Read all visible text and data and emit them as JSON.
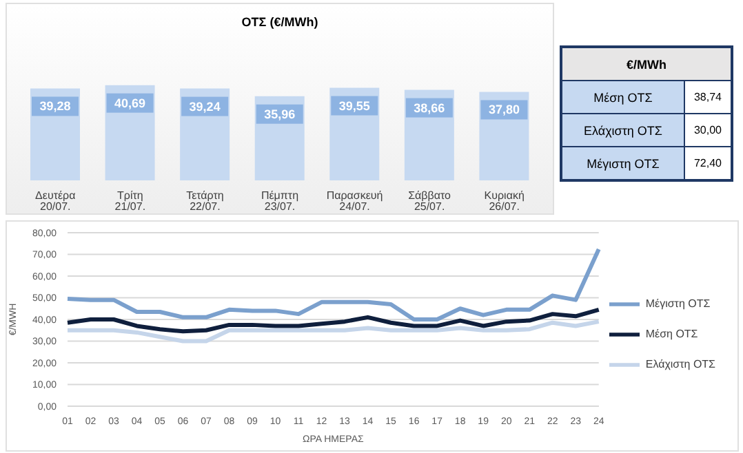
{
  "chart_data": [
    {
      "type": "bar",
      "title": "ΟΤΣ (€/MWh)",
      "categories": [
        "Δευτέρα 20/07.",
        "Τρίτη 21/07.",
        "Τετάρτη 22/07.",
        "Πέμπτη 23/07.",
        "Παρασκευή 24/07.",
        "Σάββατο 25/07.",
        "Κυριακή 26/07."
      ],
      "values": [
        39.28,
        40.69,
        39.24,
        35.96,
        39.55,
        38.66,
        37.8
      ],
      "value_labels": [
        "39,28",
        "40,69",
        "39,24",
        "35,96",
        "39,55",
        "38,66",
        "37,80"
      ],
      "color": "#c6d9f1",
      "tick_labels": "x"
    },
    {
      "type": "other",
      "title": "€/MWh",
      "categories": [
        "Μέση ΟΤΣ",
        "Ελάχιστη ΟΤΣ",
        "Μέγιστη ΟΤΣ"
      ],
      "value_labels": [
        "38,74",
        "30,00",
        "72,40"
      ]
    },
    {
      "type": "line",
      "xlabel": "ΩΡΑ ΗΜΕΡΑΣ",
      "ylabel": "€/MWH",
      "categories": [
        "01",
        "02",
        "03",
        "04",
        "05",
        "06",
        "07",
        "08",
        "09",
        "10",
        "11",
        "12",
        "13",
        "14",
        "15",
        "16",
        "17",
        "18",
        "19",
        "20",
        "21",
        "22",
        "23",
        "24"
      ],
      "series": [
        {
          "name": "Μέγιστη ΟΤΣ",
          "color": "#7ba0cd",
          "values": [
            49.5,
            49,
            49,
            43.5,
            43.5,
            41,
            41,
            44.5,
            44,
            44,
            42.5,
            48,
            48,
            48,
            47,
            40,
            40,
            45,
            42,
            44.5,
            44.5,
            51,
            49,
            72.4
          ]
        },
        {
          "name": "Μέση ΟΤΣ",
          "color": "#0f1f3d",
          "values": [
            38.5,
            40,
            40,
            37,
            35.5,
            34.5,
            35,
            37.5,
            37.5,
            37,
            37,
            38,
            39,
            41,
            38.5,
            37,
            37,
            39.5,
            37,
            39,
            39.5,
            42.5,
            41.5,
            44.5
          ]
        },
        {
          "name": "Ελάχιστη ΟΤΣ",
          "color": "#c5d5ea",
          "values": [
            35,
            35,
            35,
            34,
            32,
            30,
            30,
            35,
            35,
            35,
            35,
            35,
            35,
            36,
            35,
            35,
            35,
            36,
            35,
            35,
            35.5,
            38.5,
            37,
            39
          ]
        }
      ],
      "ylim": [
        0,
        80
      ],
      "yticks": [
        {
          "value": 0,
          "label": "0,00"
        },
        {
          "value": 10,
          "label": "10,00"
        },
        {
          "value": 20,
          "label": "20,00"
        },
        {
          "value": 30,
          "label": "30,00"
        },
        {
          "value": 40,
          "label": "40,00"
        },
        {
          "value": 50,
          "label": "50,00"
        },
        {
          "value": 60,
          "label": "60,00"
        },
        {
          "value": 70,
          "label": "70,00"
        },
        {
          "value": 80,
          "label": "80,00"
        }
      ],
      "grid": "y",
      "legend": "right",
      "marker": "none",
      "line_style": "solid"
    }
  ]
}
